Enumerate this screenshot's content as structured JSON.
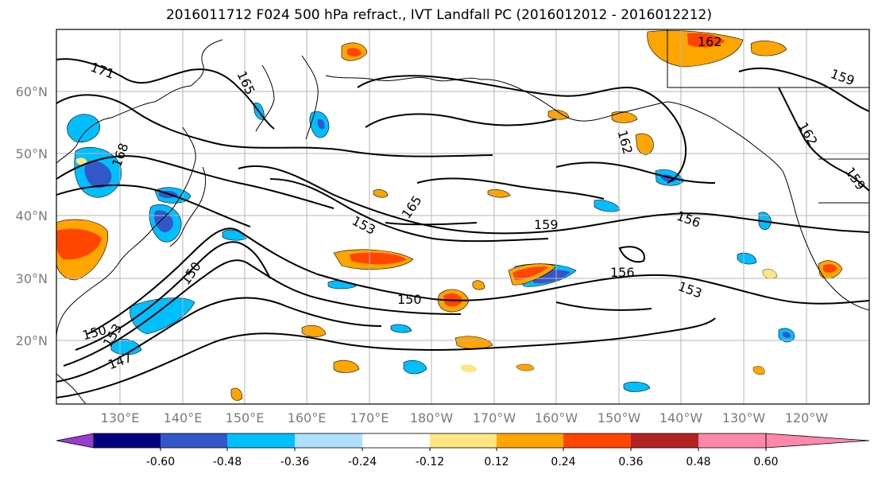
{
  "title": "2016011712 F024 500 hPa refract., IVT Landfall PC (2016012012 - 2016012212)",
  "lat_labels": [
    "60°N",
    "50°N",
    "40°N",
    "30°N",
    "20°N"
  ],
  "lon_labels": [
    "130°E",
    "140°E",
    "150°E",
    "160°E",
    "170°E",
    "180°W",
    "170°W",
    "160°W",
    "150°W",
    "140°W",
    "130°W",
    "120°W"
  ],
  "contour_labels": [
    "171",
    "165",
    "168",
    "162",
    "165",
    "153",
    "159",
    "156",
    "150",
    "156",
    "153",
    "150",
    "150",
    "153",
    "147",
    "162",
    "159",
    "162",
    "159"
  ],
  "colorbar": {
    "ticks": [
      "-0.60",
      "-0.48",
      "-0.36",
      "-0.24",
      "-0.12",
      "0.12",
      "0.24",
      "0.36",
      "0.48",
      "0.60"
    ],
    "colors": [
      "#9a3bd1",
      "#00007f",
      "#3357c8",
      "#00bfff",
      "#b0e0ff",
      "#ffffff",
      "#ffe680",
      "#ffa500",
      "#ff4500",
      "#b22222",
      "#ff88aa"
    ]
  }
}
